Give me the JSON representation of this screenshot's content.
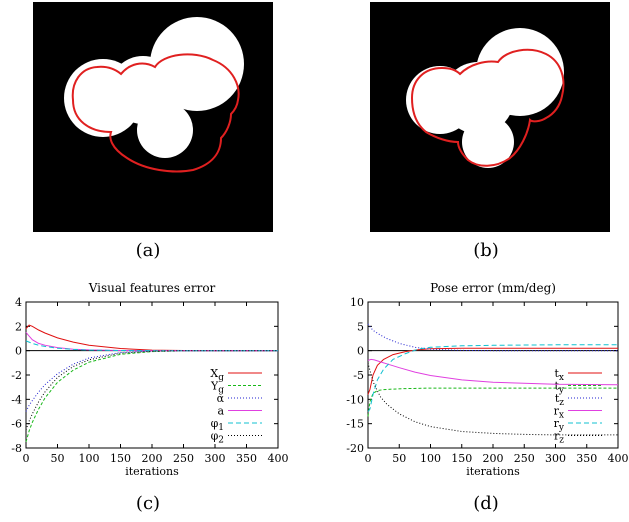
{
  "captions": {
    "a": "(a)",
    "b": "(b)",
    "c": "(c)",
    "d": "(d)"
  },
  "colors": {
    "red": "#e01010",
    "green": "#18b818",
    "blue": "#2020d0",
    "magenta": "#e040e0",
    "cyan": "#10c0d0",
    "black": "#000000",
    "image_bg": "#000000",
    "blob_fill": "#ffffff",
    "contour": "#e02020"
  },
  "chart_data": [
    {
      "type": "line",
      "title": "Visual features error",
      "xlabel": "iterations",
      "ylabel": "",
      "xlim": [
        0,
        400
      ],
      "ylim": [
        -8,
        4
      ],
      "xticks": [
        0,
        50,
        100,
        150,
        200,
        250,
        300,
        350,
        400
      ],
      "yticks": [
        4,
        2,
        0,
        -2,
        -4,
        -6,
        -8
      ],
      "legend_position": "bottom-right",
      "series": [
        {
          "name": "Xg",
          "label_main": "X",
          "label_sub": "g",
          "color": "red",
          "dash": "",
          "x": [
            0,
            5,
            10,
            20,
            30,
            50,
            75,
            100,
            150,
            200,
            250,
            300,
            400
          ],
          "y": [
            1.8,
            2.1,
            2.0,
            1.7,
            1.45,
            1.05,
            0.7,
            0.45,
            0.18,
            0.05,
            0.01,
            0,
            0
          ]
        },
        {
          "name": "Yg",
          "label_main": "Y",
          "label_sub": "g",
          "color": "green",
          "dash": "3,2",
          "x": [
            0,
            5,
            10,
            20,
            30,
            50,
            75,
            100,
            150,
            200,
            250,
            300,
            400
          ],
          "y": [
            -7.5,
            -6.6,
            -5.9,
            -4.8,
            -3.9,
            -2.6,
            -1.6,
            -0.95,
            -0.3,
            -0.08,
            -0.02,
            0,
            0
          ]
        },
        {
          "name": "α",
          "label_main": "α",
          "label_sub": "",
          "color": "blue",
          "dash": "1,2",
          "x": [
            0,
            5,
            10,
            20,
            30,
            50,
            75,
            100,
            150,
            200,
            250,
            300,
            400
          ],
          "y": [
            -5.0,
            -4.5,
            -4.1,
            -3.4,
            -2.8,
            -1.9,
            -1.1,
            -0.6,
            -0.15,
            -0.03,
            0,
            0,
            0
          ]
        },
        {
          "name": "a",
          "label_main": "a",
          "label_sub": "",
          "color": "magenta",
          "dash": "",
          "x": [
            0,
            5,
            10,
            20,
            30,
            50,
            75,
            100,
            150,
            200,
            250,
            400
          ],
          "y": [
            1.5,
            1.2,
            0.9,
            0.6,
            0.45,
            0.25,
            0.12,
            0.06,
            0.01,
            0,
            0,
            0
          ]
        },
        {
          "name": "φ1",
          "label_main": "φ",
          "label_sub": "1",
          "color": "cyan",
          "dash": "5,3",
          "x": [
            0,
            5,
            10,
            20,
            30,
            50,
            75,
            100,
            150,
            200,
            250,
            400
          ],
          "y": [
            0.8,
            0.7,
            0.6,
            0.45,
            0.35,
            0.2,
            0.1,
            0.05,
            0.01,
            0,
            0,
            0
          ]
        },
        {
          "name": "φ2",
          "label_main": "φ",
          "label_sub": "2",
          "color": "black",
          "dash": "1,2",
          "x": [
            0,
            5,
            10,
            20,
            30,
            50,
            75,
            100,
            150,
            200,
            250,
            400
          ],
          "y": [
            -6.5,
            -5.8,
            -5.2,
            -4.2,
            -3.4,
            -2.2,
            -1.3,
            -0.75,
            -0.2,
            -0.05,
            0,
            0
          ]
        }
      ]
    },
    {
      "type": "line",
      "title": "Pose error (mm/deg)",
      "xlabel": "iterations",
      "ylabel": "",
      "xlim": [
        0,
        400
      ],
      "ylim": [
        -20,
        10
      ],
      "xticks": [
        0,
        50,
        100,
        150,
        200,
        250,
        300,
        350,
        400
      ],
      "yticks": [
        10,
        5,
        0,
        -5,
        -10,
        -15,
        -20
      ],
      "legend_position": "bottom-right",
      "series": [
        {
          "name": "tx",
          "label_main": "t",
          "label_sub": "x",
          "color": "red",
          "dash": "",
          "x": [
            0,
            3,
            8,
            15,
            25,
            40,
            60,
            80,
            100,
            150,
            200,
            300,
            400
          ],
          "y": [
            -9.0,
            -8.0,
            -5.0,
            -3.0,
            -1.8,
            -0.8,
            -0.2,
            0.2,
            0.4,
            0.5,
            0.5,
            0.5,
            0.5
          ]
        },
        {
          "name": "ty",
          "label_main": "t",
          "label_sub": "y",
          "color": "green",
          "dash": "3,2",
          "x": [
            0,
            3,
            8,
            15,
            25,
            40,
            60,
            100,
            150,
            200,
            300,
            400
          ],
          "y": [
            -13.5,
            -10.5,
            -8.8,
            -8.2,
            -8.0,
            -7.9,
            -7.8,
            -7.7,
            -7.7,
            -7.7,
            -7.7,
            -7.7
          ]
        },
        {
          "name": "tz",
          "label_main": "t",
          "label_sub": "z",
          "color": "blue",
          "dash": "1,2",
          "x": [
            0,
            5,
            10,
            20,
            30,
            50,
            75,
            100,
            150,
            200,
            300,
            400
          ],
          "y": [
            5.5,
            4.6,
            4.0,
            3.2,
            2.5,
            1.5,
            0.7,
            0.3,
            0.05,
            0,
            0,
            0
          ]
        },
        {
          "name": "rx",
          "label_main": "r",
          "label_sub": "x",
          "color": "magenta",
          "dash": "",
          "x": [
            0,
            5,
            10,
            20,
            30,
            50,
            75,
            100,
            150,
            200,
            300,
            400
          ],
          "y": [
            -2.0,
            -1.8,
            -1.9,
            -2.3,
            -2.7,
            -3.5,
            -4.4,
            -5.1,
            -6.0,
            -6.5,
            -6.9,
            -7.0
          ]
        },
        {
          "name": "ry",
          "label_main": "r",
          "label_sub": "y",
          "color": "cyan",
          "dash": "5,3",
          "x": [
            0,
            3,
            8,
            15,
            25,
            40,
            60,
            80,
            100,
            150,
            200,
            300,
            400
          ],
          "y": [
            -12.5,
            -12.0,
            -9.0,
            -6.0,
            -3.8,
            -1.8,
            -0.6,
            0.3,
            0.7,
            1.0,
            1.1,
            1.2,
            1.2
          ]
        },
        {
          "name": "rz",
          "label_main": "r",
          "label_sub": "z",
          "color": "black",
          "dash": "1,2",
          "x": [
            0,
            5,
            10,
            20,
            30,
            50,
            75,
            100,
            150,
            200,
            250,
            300,
            400
          ],
          "y": [
            -2.5,
            -5.0,
            -7.0,
            -9.5,
            -11.0,
            -13.0,
            -14.6,
            -15.6,
            -16.6,
            -17.0,
            -17.2,
            -17.3,
            -17.3
          ]
        }
      ]
    }
  ]
}
